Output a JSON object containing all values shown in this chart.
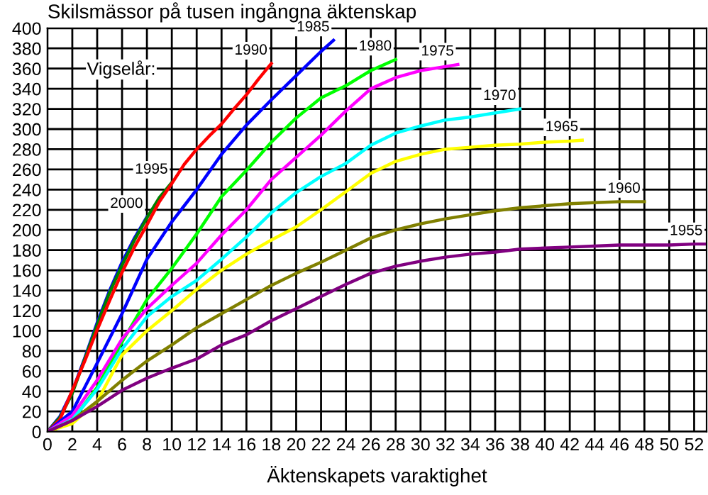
{
  "chart_data": {
    "type": "line",
    "title": "Skilsmässor på tusen ingångna äktenskap",
    "xlabel": "Äktenskapets varaktighet",
    "annotations": [
      "Vigselår:"
    ],
    "xlim": [
      0,
      53
    ],
    "ylim": [
      0,
      400
    ],
    "xticks": [
      0,
      2,
      4,
      6,
      8,
      10,
      12,
      14,
      16,
      18,
      20,
      22,
      24,
      26,
      28,
      30,
      32,
      34,
      36,
      38,
      40,
      42,
      44,
      46,
      48,
      50,
      52
    ],
    "yticks": [
      0,
      20,
      40,
      60,
      80,
      100,
      120,
      140,
      160,
      180,
      200,
      220,
      240,
      260,
      280,
      300,
      320,
      340,
      360,
      380,
      400
    ],
    "grid": true,
    "marker": "none",
    "line_style": "solid",
    "series": [
      {
        "name": "2000",
        "color": "#0000ff",
        "x": [
          0,
          1,
          2,
          3,
          4,
          5,
          6,
          7,
          8
        ],
        "values": [
          0,
          15,
          40,
          73,
          108,
          140,
          168,
          192,
          213
        ]
      },
      {
        "name": "1995",
        "color": "#008000",
        "x": [
          0,
          1,
          2,
          3,
          4,
          5,
          6,
          7,
          8,
          9,
          10
        ],
        "values": [
          0,
          14,
          38,
          72,
          106,
          138,
          165,
          190,
          212,
          232,
          247
        ]
      },
      {
        "name": "1990",
        "color": "#ff0000",
        "x": [
          0,
          1,
          2,
          3,
          4,
          5,
          6,
          7,
          8,
          9,
          10,
          11,
          12,
          13,
          14,
          15,
          16,
          17,
          18
        ],
        "values": [
          0,
          12,
          41,
          70,
          101,
          130,
          158,
          183,
          205,
          228,
          246,
          265,
          280,
          293,
          305,
          320,
          334,
          350,
          365
        ]
      },
      {
        "name": "1985",
        "color": "#0000ff",
        "x": [
          0,
          2,
          4,
          6,
          8,
          10,
          12,
          14,
          16,
          18,
          20,
          22,
          23
        ],
        "values": [
          0,
          20,
          68,
          117,
          171,
          208,
          240,
          275,
          304,
          329,
          353,
          377,
          388
        ]
      },
      {
        "name": "1980",
        "color": "#00ff00",
        "x": [
          0,
          2,
          4,
          6,
          8,
          10,
          12,
          14,
          16,
          18,
          20,
          22,
          24,
          26,
          28
        ],
        "values": [
          0,
          11,
          44,
          89,
          131,
          162,
          196,
          233,
          259,
          287,
          311,
          331,
          343,
          358,
          369
        ]
      },
      {
        "name": "1975",
        "color": "#ff00ff",
        "x": [
          0,
          2,
          4,
          6,
          8,
          10,
          12,
          14,
          16,
          18,
          20,
          22,
          24,
          26,
          28,
          30,
          32,
          33
        ],
        "values": [
          0,
          16,
          51,
          92,
          122,
          145,
          167,
          195,
          220,
          250,
          272,
          294,
          318,
          340,
          351,
          358,
          362,
          364
        ]
      },
      {
        "name": "1970",
        "color": "#00ffff",
        "x": [
          0,
          2,
          4,
          6,
          8,
          10,
          12,
          14,
          16,
          18,
          20,
          22,
          24,
          26,
          28,
          30,
          32,
          34,
          36,
          38
        ],
        "values": [
          0,
          12,
          42,
          82,
          114,
          134,
          150,
          171,
          193,
          217,
          237,
          253,
          266,
          284,
          296,
          303,
          309,
          312,
          316,
          320
        ]
      },
      {
        "name": "1965",
        "color": "#ffff00",
        "x": [
          0,
          2,
          4,
          6,
          8,
          10,
          12,
          14,
          16,
          18,
          20,
          22,
          24,
          26,
          28,
          30,
          32,
          34,
          36,
          38,
          40,
          42,
          43
        ],
        "values": [
          0,
          8,
          30,
          76,
          100,
          120,
          141,
          160,
          176,
          190,
          203,
          220,
          238,
          256,
          268,
          275,
          280,
          282,
          284,
          285,
          287,
          288,
          289
        ]
      },
      {
        "name": "1960",
        "color": "#808000",
        "x": [
          0,
          2,
          4,
          6,
          8,
          10,
          12,
          14,
          16,
          18,
          20,
          22,
          24,
          26,
          28,
          30,
          32,
          34,
          36,
          38,
          40,
          42,
          44,
          46,
          48
        ],
        "values": [
          0,
          11,
          30,
          51,
          70,
          86,
          103,
          117,
          131,
          145,
          157,
          168,
          180,
          192,
          200,
          206,
          211,
          215,
          219,
          222,
          224,
          226,
          227,
          228,
          228
        ]
      },
      {
        "name": "1955",
        "color": "#800080",
        "x": [
          0,
          2,
          4,
          6,
          8,
          10,
          12,
          14,
          16,
          18,
          20,
          22,
          24,
          26,
          28,
          30,
          32,
          34,
          36,
          38,
          40,
          42,
          44,
          46,
          48,
          50,
          52,
          53
        ],
        "values": [
          0,
          11,
          25,
          41,
          53,
          63,
          72,
          86,
          96,
          110,
          122,
          134,
          146,
          157,
          164,
          169,
          173,
          176,
          178,
          181,
          182,
          183,
          184,
          185,
          185,
          185,
          186,
          186
        ]
      }
    ]
  }
}
